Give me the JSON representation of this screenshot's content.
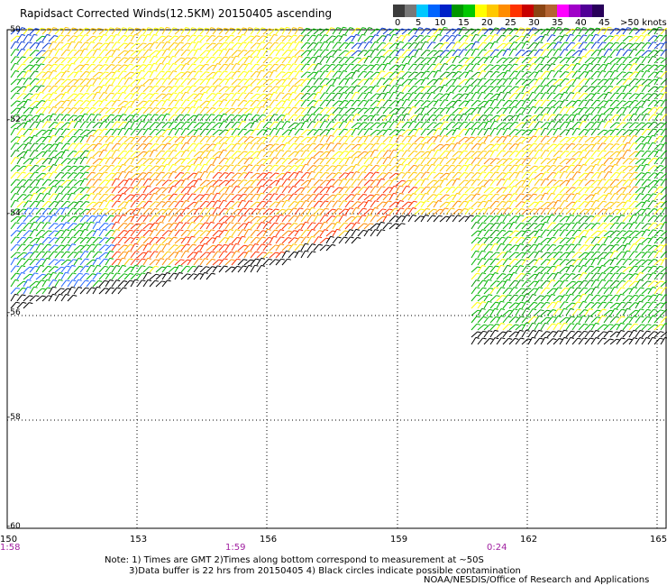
{
  "title": "Rapidsact Corrected Winds(12.5KM) 20150405 ascending",
  "legend": {
    "labels": [
      "0",
      "5",
      "10",
      "15",
      "20",
      "25",
      "30",
      "35",
      "40",
      "45",
      ">50 knots"
    ],
    "colors": [
      "#3c3c3c",
      "#787878",
      "#00c8ff",
      "#0064ff",
      "#0020c8",
      "#009600",
      "#00c800",
      "#ffff00",
      "#ffc800",
      "#ff8c00",
      "#ff3200",
      "#c80000",
      "#8b4513",
      "#b46432",
      "#ff00ff",
      "#a000c8",
      "#500096",
      "#28005a"
    ]
  },
  "axes": {
    "y_labels": [
      "-50",
      "-52",
      "-54",
      "-56",
      "-58",
      "-60"
    ],
    "x_labels": [
      "150",
      "153",
      "156",
      "159",
      "162",
      "165"
    ],
    "time_labels": [
      "1:58",
      "1:59",
      "0:24"
    ]
  },
  "notes": {
    "line1": "Note: 1) Times are GMT 2)Times along bottom correspond to measurement at ~50S",
    "line2": "3)Data buffer is 22 hrs from 20150405 4) Black circles indicate possible contamination",
    "line3": "NOAA/NESDIS/Office of Research and Applications"
  }
}
